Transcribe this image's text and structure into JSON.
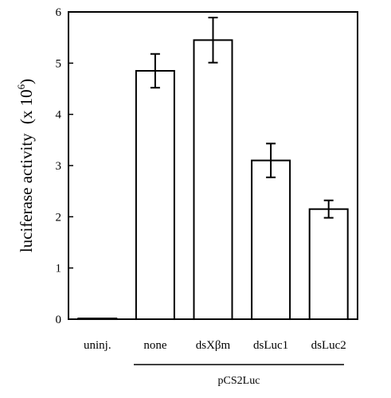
{
  "chart_data": {
    "type": "bar",
    "categories": [
      "uninj.",
      "none",
      "dsXβm",
      "dsLuc1",
      "dsLuc2"
    ],
    "values": [
      0.0,
      4.85,
      5.45,
      3.1,
      2.15
    ],
    "error": [
      0.0,
      0.33,
      0.44,
      0.33,
      0.17
    ],
    "ylabel_main": "luciferase activity",
    "ylabel_unit_prefix": "(x 10",
    "ylabel_unit_exp": "6",
    "ylabel_unit_suffix": ")",
    "ylim": [
      0,
      6
    ],
    "yticks": [
      "0",
      "1",
      "2",
      "3",
      "4",
      "5",
      "6"
    ],
    "group_label": "pCS2Luc",
    "group_categories": [
      "none",
      "dsXβm",
      "dsLuc1",
      "dsLuc2"
    ],
    "grid": false,
    "bar_fill": "#ffffff",
    "bar_stroke": "#000000"
  }
}
